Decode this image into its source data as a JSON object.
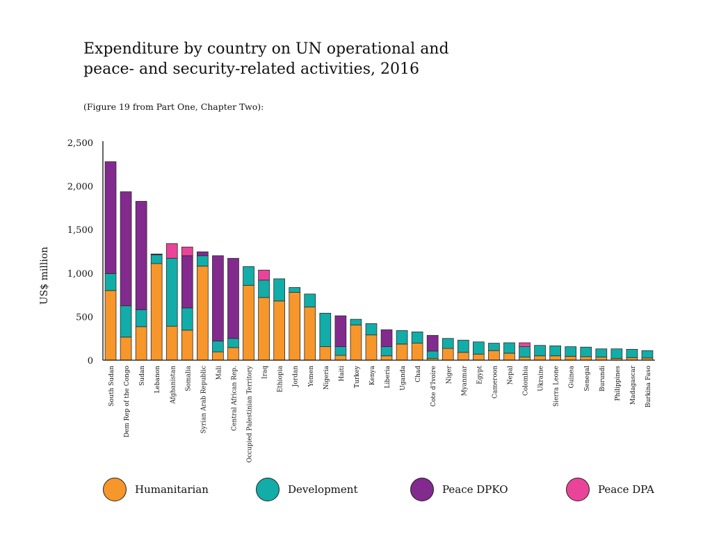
{
  "title_line1": "Expenditure by country on UN operational and",
  "title_line2": "peace- and security-related activities, 2016",
  "subtitle": "(Figure 19 from Part One, Chapter Two):",
  "colors": {
    "Humanitarian": "#F7962A",
    "Development": "#12ADA8",
    "Peace DPKO": "#832A8E",
    "Peace DPA": "#E9449A"
  },
  "legend": [
    "Humanitarian",
    "Development",
    "Peace DPKO",
    "Peace DPA"
  ],
  "chart_data": {
    "type": "bar",
    "stacked": true,
    "ylabel": "US$ million",
    "ylim": [
      0,
      2500
    ],
    "yticks": [
      0,
      500,
      1000,
      1500,
      2000,
      2500
    ],
    "ytick_labels": [
      "0",
      "500",
      "1,000",
      "1,500",
      "2,000",
      "2,500"
    ],
    "categories": [
      "South Sudan",
      "Dem Rep of the Congo",
      "Sudan",
      "Lebanon",
      "Afghanistan",
      "Somalia",
      "Syrian Arab Republic",
      "Mali",
      "Central African Rep.",
      "Occupied Palestinian Territory",
      "Iraq",
      "Ethiopia",
      "Jordan",
      "Yemen",
      "Nigeria",
      "Haiti",
      "Turkey",
      "Kenya",
      "Liberia",
      "Uganda",
      "Chad",
      "Cote d'Ivoire",
      "Niger",
      "Myanmar",
      "Egypt",
      "Cameroon",
      "Nepal",
      "Colombia",
      "Ukraine",
      "Sierra Leone",
      "Guinea",
      "Senegal",
      "Burundi",
      "Philippines",
      "Madagascar",
      "Burkina Faso"
    ],
    "series": [
      {
        "name": "Humanitarian",
        "values": [
          800,
          265,
          385,
          1110,
          390,
          345,
          1080,
          95,
          145,
          860,
          720,
          680,
          780,
          610,
          155,
          55,
          405,
          290,
          50,
          185,
          195,
          20,
          135,
          90,
          70,
          110,
          80,
          35,
          50,
          50,
          45,
          40,
          35,
          20,
          30,
          25
        ]
      },
      {
        "name": "Development",
        "values": [
          195,
          360,
          195,
          100,
          780,
          255,
          120,
          125,
          105,
          215,
          200,
          255,
          55,
          150,
          385,
          100,
          65,
          130,
          105,
          155,
          130,
          85,
          115,
          140,
          140,
          85,
          120,
          120,
          120,
          115,
          110,
          110,
          95,
          110,
          95,
          85
        ]
      },
      {
        "name": "Peace DPKO",
        "values": [
          1285,
          1310,
          1245,
          10,
          0,
          600,
          45,
          980,
          920,
          0,
          0,
          0,
          0,
          0,
          0,
          355,
          0,
          0,
          195,
          0,
          0,
          180,
          0,
          0,
          0,
          0,
          0,
          0,
          0,
          0,
          0,
          0,
          0,
          0,
          0,
          0
        ]
      },
      {
        "name": "Peace DPA",
        "values": [
          0,
          0,
          0,
          0,
          170,
          100,
          0,
          0,
          0,
          0,
          115,
          0,
          0,
          0,
          0,
          0,
          0,
          0,
          0,
          0,
          0,
          0,
          0,
          0,
          0,
          0,
          0,
          45,
          0,
          0,
          0,
          0,
          0,
          0,
          0,
          0
        ]
      }
    ]
  }
}
